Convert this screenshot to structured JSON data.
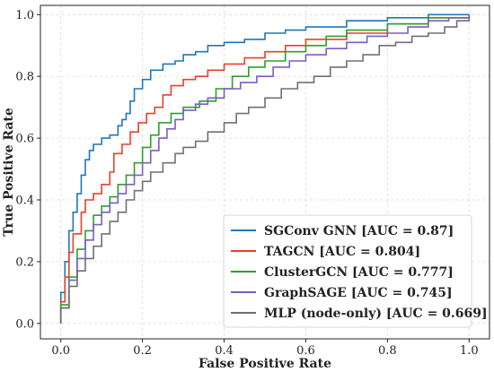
{
  "chart_data": {
    "type": "line",
    "title": "",
    "xlabel": "False Positive Rate",
    "ylabel": "True Positive Rate",
    "xlim": [
      -0.05,
      1.05
    ],
    "ylim": [
      -0.05,
      1.03
    ],
    "x_ticks": [
      "0.0",
      "0.2",
      "0.4",
      "0.6",
      "0.8",
      "1.0"
    ],
    "y_ticks": [
      "0.0",
      "0.2",
      "0.4",
      "0.6",
      "0.8",
      "1.0"
    ],
    "grid": true,
    "legend_position": "lower-right",
    "series": [
      {
        "name": "SGConv GNN [AUC = 0.87]",
        "color": "#1f77b4",
        "points": [
          [
            0,
            0
          ],
          [
            0,
            0.1
          ],
          [
            0.01,
            0.2
          ],
          [
            0.02,
            0.3
          ],
          [
            0.03,
            0.36
          ],
          [
            0.04,
            0.42
          ],
          [
            0.05,
            0.48
          ],
          [
            0.06,
            0.53
          ],
          [
            0.07,
            0.56
          ],
          [
            0.08,
            0.58
          ],
          [
            0.1,
            0.6
          ],
          [
            0.12,
            0.61
          ],
          [
            0.14,
            0.64
          ],
          [
            0.15,
            0.66
          ],
          [
            0.16,
            0.68
          ],
          [
            0.17,
            0.72
          ],
          [
            0.18,
            0.76
          ],
          [
            0.2,
            0.79
          ],
          [
            0.22,
            0.82
          ],
          [
            0.25,
            0.84
          ],
          [
            0.28,
            0.85
          ],
          [
            0.3,
            0.87
          ],
          [
            0.33,
            0.88
          ],
          [
            0.36,
            0.9
          ],
          [
            0.4,
            0.91
          ],
          [
            0.45,
            0.92
          ],
          [
            0.5,
            0.94
          ],
          [
            0.55,
            0.95
          ],
          [
            0.6,
            0.96
          ],
          [
            0.7,
            0.98
          ],
          [
            0.8,
            0.99
          ],
          [
            0.9,
            1
          ],
          [
            1,
            1
          ]
        ]
      },
      {
        "name": "TAGCN [AUC = 0.804]",
        "color": "#e8402a",
        "points": [
          [
            0,
            0
          ],
          [
            0,
            0.07
          ],
          [
            0.01,
            0.15
          ],
          [
            0.02,
            0.23
          ],
          [
            0.03,
            0.29
          ],
          [
            0.05,
            0.36
          ],
          [
            0.06,
            0.4
          ],
          [
            0.08,
            0.42
          ],
          [
            0.1,
            0.45
          ],
          [
            0.12,
            0.49
          ],
          [
            0.13,
            0.55
          ],
          [
            0.15,
            0.58
          ],
          [
            0.17,
            0.62
          ],
          [
            0.19,
            0.65
          ],
          [
            0.21,
            0.68
          ],
          [
            0.23,
            0.7
          ],
          [
            0.25,
            0.74
          ],
          [
            0.27,
            0.77
          ],
          [
            0.3,
            0.79
          ],
          [
            0.33,
            0.8
          ],
          [
            0.36,
            0.82
          ],
          [
            0.4,
            0.84
          ],
          [
            0.45,
            0.86
          ],
          [
            0.5,
            0.88
          ],
          [
            0.55,
            0.9
          ],
          [
            0.6,
            0.92
          ],
          [
            0.7,
            0.94
          ],
          [
            0.8,
            0.97
          ],
          [
            0.9,
            0.99
          ],
          [
            1,
            1
          ]
        ]
      },
      {
        "name": "ClusterGCN [AUC = 0.777]",
        "color": "#2ca02c",
        "points": [
          [
            0,
            0
          ],
          [
            0,
            0.06
          ],
          [
            0.02,
            0.15
          ],
          [
            0.04,
            0.24
          ],
          [
            0.06,
            0.3
          ],
          [
            0.08,
            0.35
          ],
          [
            0.1,
            0.38
          ],
          [
            0.12,
            0.41
          ],
          [
            0.14,
            0.45
          ],
          [
            0.16,
            0.48
          ],
          [
            0.18,
            0.52
          ],
          [
            0.2,
            0.57
          ],
          [
            0.22,
            0.61
          ],
          [
            0.24,
            0.65
          ],
          [
            0.27,
            0.68
          ],
          [
            0.3,
            0.7
          ],
          [
            0.34,
            0.72
          ],
          [
            0.38,
            0.76
          ],
          [
            0.42,
            0.8
          ],
          [
            0.46,
            0.83
          ],
          [
            0.5,
            0.85
          ],
          [
            0.55,
            0.88
          ],
          [
            0.6,
            0.9
          ],
          [
            0.65,
            0.93
          ],
          [
            0.7,
            0.95
          ],
          [
            0.8,
            0.97
          ],
          [
            0.9,
            0.99
          ],
          [
            1,
            1
          ]
        ]
      },
      {
        "name": "GraphSAGE [AUC = 0.745]",
        "color": "#7b5cc4",
        "points": [
          [
            0,
            0
          ],
          [
            0,
            0.05
          ],
          [
            0.02,
            0.14
          ],
          [
            0.04,
            0.21
          ],
          [
            0.06,
            0.27
          ],
          [
            0.08,
            0.32
          ],
          [
            0.1,
            0.36
          ],
          [
            0.12,
            0.39
          ],
          [
            0.14,
            0.42
          ],
          [
            0.16,
            0.45
          ],
          [
            0.18,
            0.48
          ],
          [
            0.2,
            0.52
          ],
          [
            0.22,
            0.56
          ],
          [
            0.24,
            0.6
          ],
          [
            0.26,
            0.63
          ],
          [
            0.28,
            0.66
          ],
          [
            0.3,
            0.69
          ],
          [
            0.33,
            0.71
          ],
          [
            0.36,
            0.73
          ],
          [
            0.4,
            0.76
          ],
          [
            0.44,
            0.78
          ],
          [
            0.48,
            0.8
          ],
          [
            0.52,
            0.83
          ],
          [
            0.56,
            0.85
          ],
          [
            0.6,
            0.87
          ],
          [
            0.65,
            0.89
          ],
          [
            0.7,
            0.91
          ],
          [
            0.75,
            0.93
          ],
          [
            0.8,
            0.94
          ],
          [
            0.85,
            0.96
          ],
          [
            0.9,
            0.98
          ],
          [
            0.95,
            0.99
          ],
          [
            1,
            1
          ]
        ]
      },
      {
        "name": "MLP (node-only) [AUC = 0.669]",
        "color": "#707070",
        "points": [
          [
            0,
            0
          ],
          [
            0,
            0.05
          ],
          [
            0.02,
            0.12
          ],
          [
            0.04,
            0.17
          ],
          [
            0.06,
            0.21
          ],
          [
            0.08,
            0.25
          ],
          [
            0.1,
            0.29
          ],
          [
            0.12,
            0.33
          ],
          [
            0.14,
            0.36
          ],
          [
            0.16,
            0.4
          ],
          [
            0.18,
            0.43
          ],
          [
            0.2,
            0.46
          ],
          [
            0.22,
            0.49
          ],
          [
            0.25,
            0.52
          ],
          [
            0.28,
            0.55
          ],
          [
            0.3,
            0.57
          ],
          [
            0.33,
            0.59
          ],
          [
            0.36,
            0.62
          ],
          [
            0.4,
            0.65
          ],
          [
            0.43,
            0.68
          ],
          [
            0.46,
            0.7
          ],
          [
            0.5,
            0.73
          ],
          [
            0.54,
            0.76
          ],
          [
            0.58,
            0.78
          ],
          [
            0.62,
            0.8
          ],
          [
            0.66,
            0.83
          ],
          [
            0.7,
            0.85
          ],
          [
            0.74,
            0.87
          ],
          [
            0.78,
            0.9
          ],
          [
            0.82,
            0.91
          ],
          [
            0.86,
            0.93
          ],
          [
            0.9,
            0.94
          ],
          [
            0.94,
            0.96
          ],
          [
            0.97,
            0.98
          ],
          [
            1,
            1
          ]
        ]
      }
    ]
  }
}
